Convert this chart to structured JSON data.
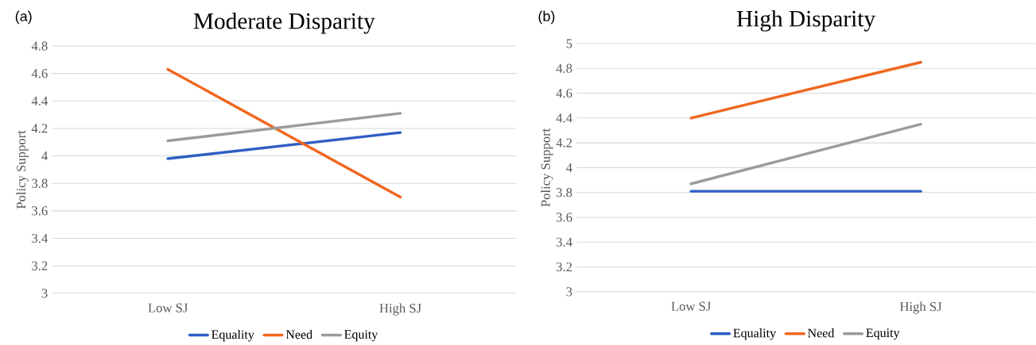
{
  "chart_data": [
    {
      "type": "line",
      "title": "Moderate Disparity",
      "ylabel": "Policy Support",
      "annotations": [
        "(a)"
      ],
      "categories": [
        "Low SJ",
        "High SJ"
      ],
      "series": [
        {
          "name": "Equality",
          "color": "#2f5fc4",
          "values": [
            3.98,
            4.17
          ]
        },
        {
          "name": "Need",
          "color": "#f0671f",
          "values": [
            4.63,
            3.7
          ]
        },
        {
          "name": "Equity",
          "color": "#9b9b9b",
          "values": [
            4.11,
            4.31
          ]
        }
      ],
      "ylim": [
        3,
        4.8
      ],
      "yticks": [
        3,
        3.2,
        3.4,
        3.6,
        3.8,
        4,
        4.2,
        4.4,
        4.6,
        4.8
      ],
      "grid": "y",
      "legend": "bottom",
      "marker": "none",
      "line_style": "solid"
    },
    {
      "type": "line",
      "title": "High Disparity",
      "ylabel": "Policy Support",
      "annotations": [
        "(b)"
      ],
      "categories": [
        "Low SJ",
        "High SJ"
      ],
      "series": [
        {
          "name": "Equality",
          "color": "#2f5fc4",
          "values": [
            3.81,
            3.81
          ]
        },
        {
          "name": "Need",
          "color": "#f0671f",
          "values": [
            4.4,
            4.85
          ]
        },
        {
          "name": "Equity",
          "color": "#9b9b9b",
          "values": [
            3.87,
            4.35
          ]
        }
      ],
      "ylim": [
        3,
        5
      ],
      "yticks": [
        3,
        3.2,
        3.4,
        3.6,
        3.8,
        4,
        4.2,
        4.4,
        4.6,
        4.8,
        5
      ],
      "grid": "y",
      "legend": "bottom",
      "marker": "none",
      "line_style": "solid"
    }
  ]
}
